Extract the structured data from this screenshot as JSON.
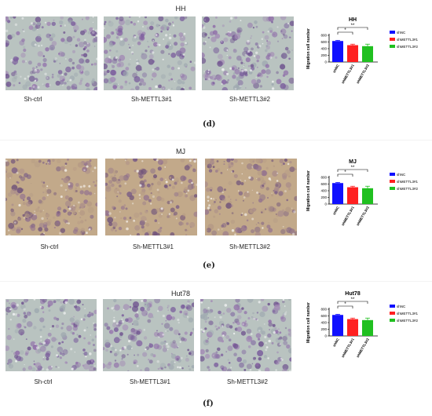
{
  "panels": [
    {
      "id": "d",
      "title": "HH",
      "tint": "green",
      "images": [
        "Sh-ctrl",
        "Sh-METTL3#1",
        "Sh-METTL3#2"
      ],
      "letter": "(d)",
      "chart": {
        "title": "HH",
        "ylabel": "Migration cell number",
        "sig1": "*",
        "sig2": "**"
      }
    },
    {
      "id": "e",
      "title": "MJ",
      "tint": "brown",
      "images": [
        "Sh-ctrl",
        "Sh-METTL3#1",
        "Sh-METTL3#2"
      ],
      "letter": "(e)",
      "chart": {
        "title": "MJ",
        "ylabel": "Migration cell number",
        "sig1": "*",
        "sig2": "**"
      }
    },
    {
      "id": "f",
      "title": "Hut78",
      "tint": "green",
      "images": [
        "Sh-ctrl",
        "Sh-METTL3#1",
        "Sh-METTL3#2"
      ],
      "letter": "(f)",
      "chart": {
        "title": "Hut78",
        "ylabel": "Migration cell number",
        "sig1": "*",
        "sig2": "**"
      }
    }
  ],
  "chart_data": [
    {
      "type": "bar",
      "title": "HH",
      "categories": [
        "shNC",
        "shMETTL3#1",
        "shMETTL3#2"
      ],
      "values": [
        630,
        505,
        475
      ],
      "errors": [
        20,
        30,
        60
      ],
      "ylabel": "Migration cell number",
      "ylim": [
        0,
        800
      ],
      "yticks": [
        0,
        200,
        400,
        600,
        800
      ],
      "colors": [
        "#1010ff",
        "#ff2020",
        "#20c020"
      ],
      "legend": "right"
    },
    {
      "type": "bar",
      "title": "MJ",
      "categories": [
        "shNC",
        "shMETTL3#1",
        "shMETTL3#2"
      ],
      "values": [
        630,
        505,
        475
      ],
      "errors": [
        20,
        30,
        60
      ],
      "ylabel": "Migration cell number",
      "ylim": [
        0,
        800
      ],
      "yticks": [
        0,
        200,
        400,
        600,
        800
      ],
      "colors": [
        "#1010ff",
        "#ff2020",
        "#20c020"
      ],
      "legend": "right"
    },
    {
      "type": "bar",
      "title": "Hut78",
      "categories": [
        "shNC",
        "shMETTL3#1",
        "shMETTL3#2"
      ],
      "values": [
        630,
        505,
        475
      ],
      "errors": [
        20,
        30,
        60
      ],
      "ylabel": "Migration cell number",
      "ylim": [
        0,
        800
      ],
      "yticks": [
        0,
        200,
        400,
        600,
        800
      ],
      "colors": [
        "#1010ff",
        "#ff2020",
        "#20c020"
      ],
      "legend": "right"
    }
  ]
}
